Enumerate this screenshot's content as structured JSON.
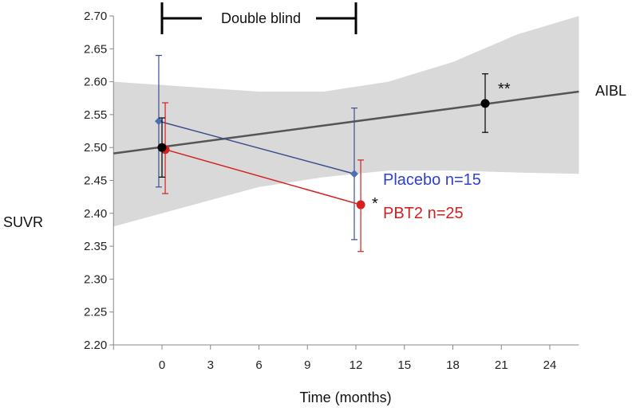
{
  "chart_data": {
    "type": "line",
    "title": "",
    "xlabel": "Time (months)",
    "ylabel": "SUVR",
    "xlim": [
      -3,
      25.8
    ],
    "ylim": [
      2.2,
      2.7
    ],
    "xticks": [
      "0",
      "3",
      "6",
      "9",
      "12",
      "15",
      "18",
      "21",
      "24"
    ],
    "yticks": [
      "2.20",
      "2.25",
      "2.30",
      "2.35",
      "2.40",
      "2.45",
      "2.50",
      "2.55",
      "2.60",
      "2.65",
      "2.70"
    ],
    "annotation": {
      "label": "Double blind",
      "from": 0,
      "to": 12
    },
    "series": [
      {
        "name": "Placebo n=15",
        "color": "#2f3fd0",
        "line_color": "#3b4f8f",
        "marker": "diamond",
        "points": [
          {
            "x": -0.2,
            "y": 2.54,
            "lo": 2.44,
            "hi": 2.64
          },
          {
            "x": 11.9,
            "y": 2.46,
            "lo": 2.36,
            "hi": 2.56
          }
        ]
      },
      {
        "name": "PBT2 n=25",
        "color": "#d42020",
        "line_color": "#d42020",
        "marker": "circle",
        "points": [
          {
            "x": 0.2,
            "y": 2.497,
            "lo": 2.43,
            "hi": 2.568
          },
          {
            "x": 12.3,
            "y": 2.413,
            "lo": 2.342,
            "hi": 2.481
          }
        ],
        "star": "*"
      },
      {
        "name": "AIBL",
        "color": "#000000",
        "marker": "circle",
        "points": [
          {
            "x": 0,
            "y": 2.5,
            "lo": 2.455,
            "hi": 2.545
          },
          {
            "x": 20,
            "y": 2.567,
            "lo": 2.523,
            "hi": 2.612
          }
        ],
        "star": "**",
        "trend": {
          "x": [
            -3,
            25.8
          ],
          "y": [
            2.491,
            2.585
          ]
        },
        "band_upper": [
          [
            -3,
            2.6
          ],
          [
            0,
            2.595
          ],
          [
            6,
            2.585
          ],
          [
            10,
            2.585
          ],
          [
            14,
            2.6
          ],
          [
            18,
            2.63
          ],
          [
            22,
            2.672
          ],
          [
            25.8,
            2.7
          ]
        ],
        "band_lower": [
          [
            -3,
            2.38
          ],
          [
            0,
            2.4
          ],
          [
            6,
            2.44
          ],
          [
            10,
            2.455
          ],
          [
            14,
            2.465
          ],
          [
            18,
            2.465
          ],
          [
            22,
            2.462
          ],
          [
            25.8,
            2.46
          ]
        ]
      }
    ]
  }
}
